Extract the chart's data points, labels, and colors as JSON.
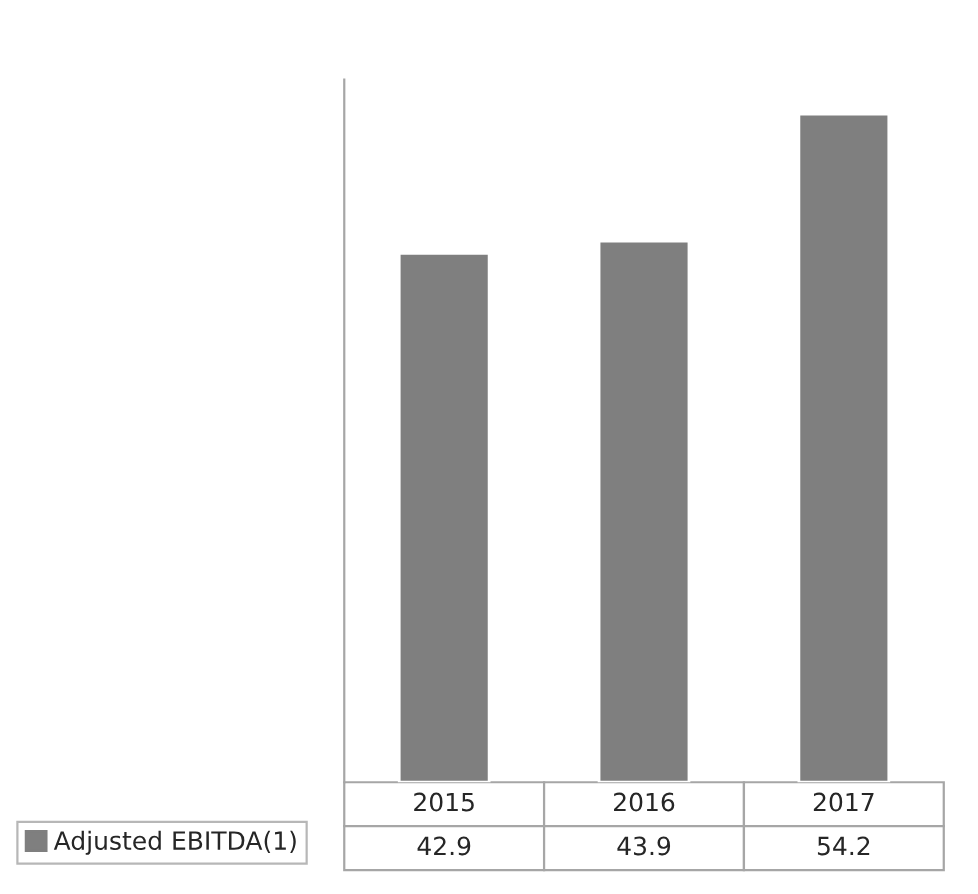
{
  "chart_data": {
    "type": "bar",
    "categories": [
      "2015",
      "2016",
      "2017"
    ],
    "series": [
      {
        "name": "Adjusted EBITDA(1)",
        "color": "#7f7f7f",
        "values": [
          42.9,
          43.9,
          54.2
        ]
      }
    ],
    "ylim": [
      0,
      57
    ],
    "data_labels": true,
    "legend": "bottom left"
  }
}
